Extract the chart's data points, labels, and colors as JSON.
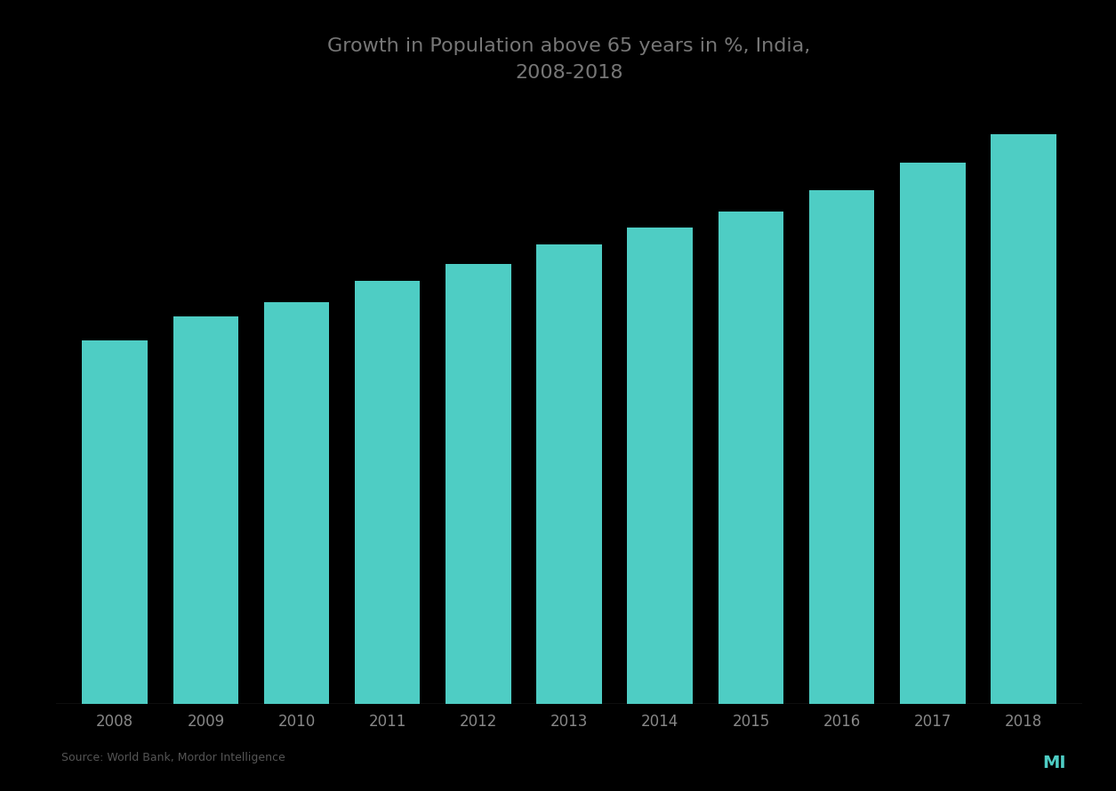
{
  "title_line1": "Growth in Population above 65 years in %, India,",
  "title_line2": "2008-2018",
  "years": [
    "2008",
    "2009",
    "2010",
    "2011",
    "2012",
    "2013",
    "2014",
    "2015",
    "2016",
    "2017",
    "2018"
  ],
  "values": [
    5.2,
    5.55,
    5.75,
    6.05,
    6.3,
    6.58,
    6.82,
    7.05,
    7.35,
    7.75,
    8.15
  ],
  "bar_color": "#4ECDC4",
  "background_color": "#000000",
  "text_color": "#888888",
  "title_color": "#777777",
  "source_text": "Source: World Bank, Mordor Intelligence",
  "ylim_min": 0,
  "ylim_max": 8.6,
  "bar_width": 0.72
}
